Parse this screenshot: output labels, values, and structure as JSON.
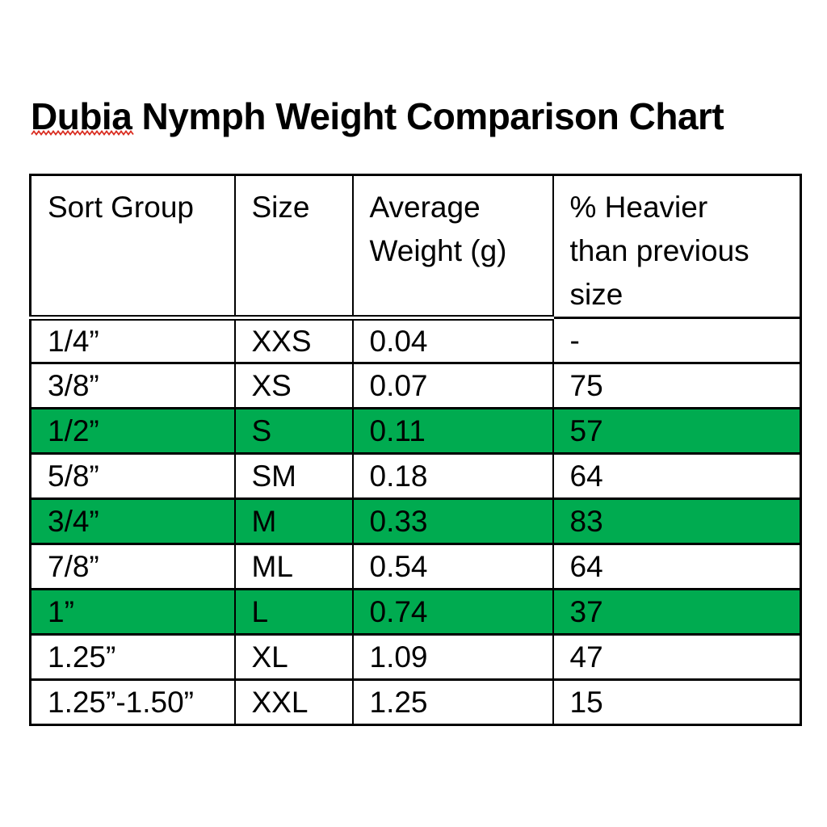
{
  "title": {
    "word": "Dubia",
    "rest": " Nymph Weight Comparison Chart",
    "squiggle_color": "#d92b1f"
  },
  "table": {
    "highlight_color": "#00ab50",
    "columns": [
      {
        "key": "sort_group",
        "label": "Sort Group"
      },
      {
        "key": "size",
        "label": "Size"
      },
      {
        "key": "avg_weight",
        "label": "Average\nWeight (g)"
      },
      {
        "key": "pct_heavier",
        "label": "% Heavier\nthan previous\nsize"
      }
    ],
    "rows": [
      {
        "sort_group": "1/4”",
        "size": "XXS",
        "avg_weight": "0.04",
        "pct_heavier": "-",
        "highlighted": false
      },
      {
        "sort_group": "3/8”",
        "size": "XS",
        "avg_weight": "0.07",
        "pct_heavier": "75",
        "highlighted": false
      },
      {
        "sort_group": "1/2”",
        "size": "S",
        "avg_weight": "0.11",
        "pct_heavier": "57",
        "highlighted": true
      },
      {
        "sort_group": "5/8”",
        "size": "SM",
        "avg_weight": "0.18",
        "pct_heavier": "64",
        "highlighted": false
      },
      {
        "sort_group": "3/4”",
        "size": "M",
        "avg_weight": "0.33",
        "pct_heavier": "83",
        "highlighted": true
      },
      {
        "sort_group": "7/8”",
        "size": "ML",
        "avg_weight": "0.54",
        "pct_heavier": "64",
        "highlighted": false
      },
      {
        "sort_group": "1”",
        "size": "L",
        "avg_weight": "0.74",
        "pct_heavier": "37",
        "highlighted": true
      },
      {
        "sort_group": "1.25”",
        "size": "XL",
        "avg_weight": "1.09",
        "pct_heavier": "47",
        "highlighted": false
      },
      {
        "sort_group": "1.25”-1.50”",
        "size": "XXL",
        "avg_weight": "1.25",
        "pct_heavier": "15",
        "highlighted": false
      }
    ]
  },
  "chart_data": {
    "type": "table",
    "title": "Dubia Nymph Weight Comparison Chart",
    "columns": [
      "Sort Group",
      "Size",
      "Average Weight (g)",
      "% Heavier than previous size"
    ],
    "rows": [
      [
        "1/4”",
        "XXS",
        "0.04",
        "-"
      ],
      [
        "3/8”",
        "XS",
        "0.07",
        "75"
      ],
      [
        "1/2”",
        "S",
        "0.11",
        "57"
      ],
      [
        "5/8”",
        "SM",
        "0.18",
        "64"
      ],
      [
        "3/4”",
        "M",
        "0.33",
        "83"
      ],
      [
        "7/8”",
        "ML",
        "0.54",
        "64"
      ],
      [
        "1”",
        "L",
        "0.74",
        "37"
      ],
      [
        "1.25”",
        "XL",
        "1.09",
        "47"
      ],
      [
        "1.25”-1.50”",
        "XXL",
        "1.25",
        "15"
      ]
    ],
    "highlighted_row_indices": [
      2,
      4,
      6
    ],
    "highlight_color": "#00ab50"
  }
}
